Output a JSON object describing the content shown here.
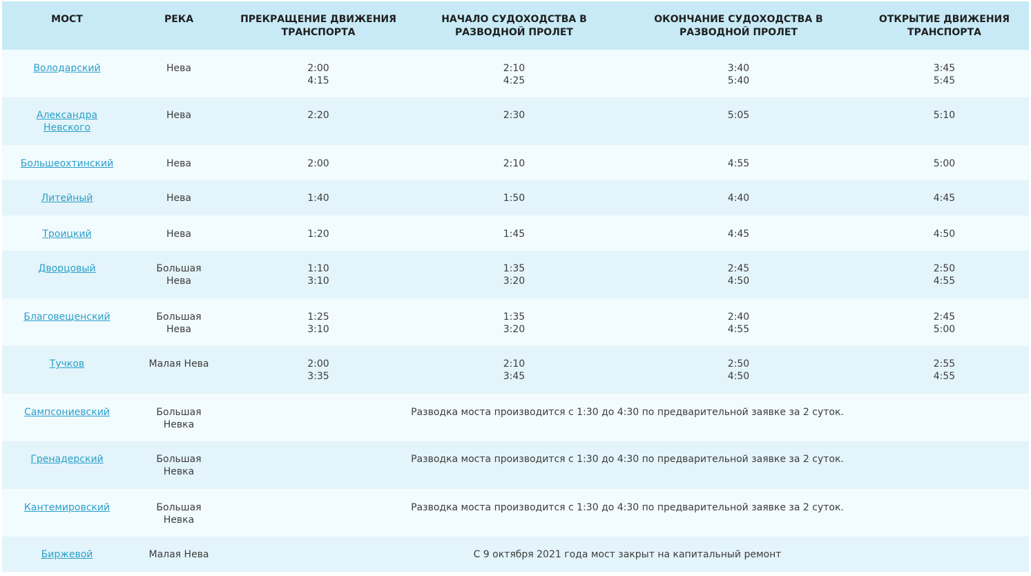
{
  "headers": {
    "bridge": "МОСТ",
    "river": "РЕКА",
    "traffic_stop": "ПРЕКРАЩЕНИЕ ДВИЖЕНИЯ ТРАНСПОРТА",
    "nav_start": "НАЧАЛО СУДОХОДСТВА В РАЗВОДНОЙ ПРОЛЕТ",
    "nav_end": "ОКОНЧАНИЕ СУДОХОДСТВА В РАЗВОДНОЙ ПРОЛЕТ",
    "traffic_open": "ОТКРЫТИЕ ДВИЖЕНИЯ ТРАНСПОРТА"
  },
  "rows": [
    {
      "bridge": [
        "Володарский"
      ],
      "river": [
        "Нева"
      ],
      "stop": [
        "2:00",
        "4:15"
      ],
      "start": [
        "2:10",
        "4:25"
      ],
      "end": [
        "3:40",
        "5:40"
      ],
      "open": [
        "3:45",
        "5:45"
      ]
    },
    {
      "bridge": [
        "Александра",
        "Невского"
      ],
      "river": [
        "Нева"
      ],
      "stop": [
        "2:20"
      ],
      "start": [
        "2:30"
      ],
      "end": [
        "5:05"
      ],
      "open": [
        "5:10"
      ]
    },
    {
      "bridge": [
        "Большеохтинский"
      ],
      "river": [
        "Нева"
      ],
      "stop": [
        "2:00"
      ],
      "start": [
        "2:10"
      ],
      "end": [
        "4:55"
      ],
      "open": [
        "5:00"
      ]
    },
    {
      "bridge": [
        "Литейный"
      ],
      "river": [
        "Нева"
      ],
      "stop": [
        "1:40"
      ],
      "start": [
        "1:50"
      ],
      "end": [
        "4:40"
      ],
      "open": [
        "4:45"
      ]
    },
    {
      "bridge": [
        "Троицкий"
      ],
      "river": [
        "Нева"
      ],
      "stop": [
        "1:20"
      ],
      "start": [
        "1:45"
      ],
      "end": [
        "4:45"
      ],
      "open": [
        "4:50"
      ]
    },
    {
      "bridge": [
        "Дворцовый"
      ],
      "river": [
        "Большая",
        "Нева"
      ],
      "stop": [
        "1:10",
        "3:10"
      ],
      "start": [
        "1:35",
        "3:20"
      ],
      "end": [
        "2:45",
        "4:50"
      ],
      "open": [
        "2:50",
        "4:55"
      ]
    },
    {
      "bridge": [
        "Благовещенский"
      ],
      "river": [
        "Большая",
        "Нева"
      ],
      "stop": [
        "1:25",
        "3:10"
      ],
      "start": [
        "1:35",
        "3:20"
      ],
      "end": [
        "2:40",
        "4:55"
      ],
      "open": [
        "2:45",
        "5:00"
      ]
    },
    {
      "bridge": [
        "Тучков"
      ],
      "river": [
        "Малая Нева"
      ],
      "stop": [
        "2:00",
        "3:35"
      ],
      "start": [
        "2:10",
        "3:45"
      ],
      "end": [
        "2:50",
        "4:50"
      ],
      "open": [
        "2:55",
        "4:55"
      ]
    },
    {
      "bridge": [
        "Сампсониевский"
      ],
      "river": [
        "Большая",
        "Невка"
      ],
      "note": "Разводка моста производится с 1:30 до 4:30 по предварительной заявке за 2 суток."
    },
    {
      "bridge": [
        "Гренадерский"
      ],
      "river": [
        "Большая",
        "Невка"
      ],
      "note": "Разводка моста производится с 1:30 до 4:30 по предварительной заявке за 2 суток."
    },
    {
      "bridge": [
        "Кантемировский"
      ],
      "river": [
        "Большая",
        "Невка"
      ],
      "note": "Разводка моста производится с 1:30 до 4:30 по предварительной заявке за 2 суток."
    },
    {
      "bridge": [
        "Биржевой"
      ],
      "river": [
        "Малая Нева"
      ],
      "note": "С 9 октября 2021 года мост закрыт на капитальный ремонт"
    }
  ]
}
